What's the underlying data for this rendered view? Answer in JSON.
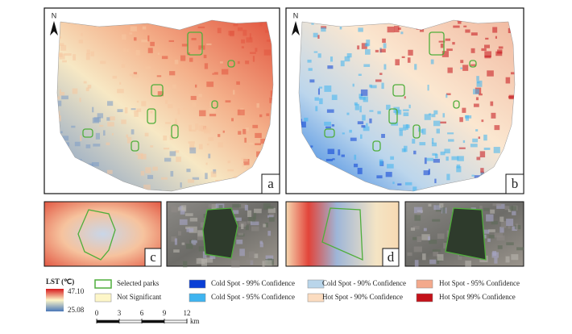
{
  "panels": [
    {
      "label": "a",
      "north": "N"
    },
    {
      "label": "b",
      "north": "N"
    }
  ],
  "insets": [
    "c",
    "d"
  ],
  "legend": {
    "title": "LST (℃)",
    "max": "47.10",
    "min": "25.08",
    "items": [
      {
        "label": "Selected parks",
        "color": "#4fae3b"
      },
      {
        "label": "Not Significant",
        "color": "#fdf6c8"
      },
      {
        "label": "Cold Spot - 99% Confidence",
        "color": "#0a3fd6"
      },
      {
        "label": "Cold Spot - 95% Confidence",
        "color": "#3fb4f0"
      },
      {
        "label": "Cold Spot - 90% Confidence",
        "color": "#b9d5ea"
      },
      {
        "label": "Hot Spot - 90% Confidence",
        "color": "#fbdcc0"
      },
      {
        "label": "Hot Spot - 95% Confidence",
        "color": "#f3a98c"
      },
      {
        "label": "Hot Spot   99% Confidence",
        "color": "#c4121a"
      }
    ],
    "scale": {
      "ticks": [
        0,
        3,
        6,
        9,
        12
      ],
      "unit": "km"
    }
  }
}
